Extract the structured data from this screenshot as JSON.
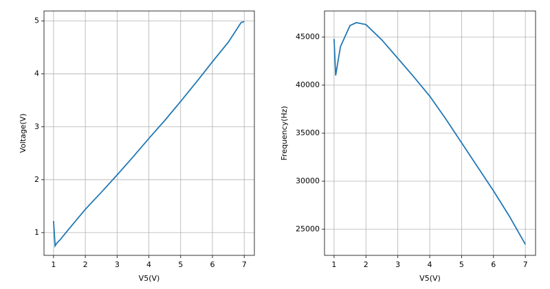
{
  "chart_data": [
    {
      "type": "line",
      "xlabel": "V5(V)",
      "ylabel": "Voltage(V)",
      "x": [
        1,
        1.05,
        1.1,
        1.2,
        1.5,
        2,
        2.5,
        3,
        3.5,
        4,
        4.5,
        5,
        5.5,
        6,
        6.5,
        6.9,
        7
      ],
      "series": [
        {
          "color": "#1f77b4",
          "values": [
            1.22,
            0.75,
            0.8,
            0.86,
            1.08,
            1.44,
            1.76,
            2.09,
            2.43,
            2.78,
            3.12,
            3.48,
            3.85,
            4.23,
            4.6,
            4.97,
            4.99
          ]
        }
      ],
      "xlim": [
        0.7,
        7.32
      ],
      "ylim": [
        0.57,
        5.19
      ],
      "xticks": [
        1,
        2,
        3,
        4,
        5,
        6,
        7
      ],
      "yticks": [
        1,
        2,
        3,
        4,
        5
      ],
      "grid": true
    },
    {
      "type": "line",
      "xlabel": "V5(V)",
      "ylabel": "Frequency(Hz)",
      "x": [
        1,
        1.05,
        1.2,
        1.5,
        1.7,
        2,
        2.5,
        3,
        3.5,
        4,
        4.5,
        5,
        5.5,
        6,
        6.5,
        7
      ],
      "series": [
        {
          "color": "#1f77b4",
          "values": [
            44800,
            41000,
            44000,
            46200,
            46500,
            46300,
            44700,
            42786,
            40860,
            38857,
            36500,
            34000,
            31500,
            29000,
            26350,
            23430
          ]
        }
      ],
      "xlim": [
        0.7,
        7.32
      ],
      "ylim": [
        22286,
        47714
      ],
      "xticks": [
        1,
        2,
        3,
        4,
        5,
        6,
        7
      ],
      "yticks": [
        25000,
        30000,
        35000,
        40000,
        45000
      ],
      "grid": true
    }
  ]
}
